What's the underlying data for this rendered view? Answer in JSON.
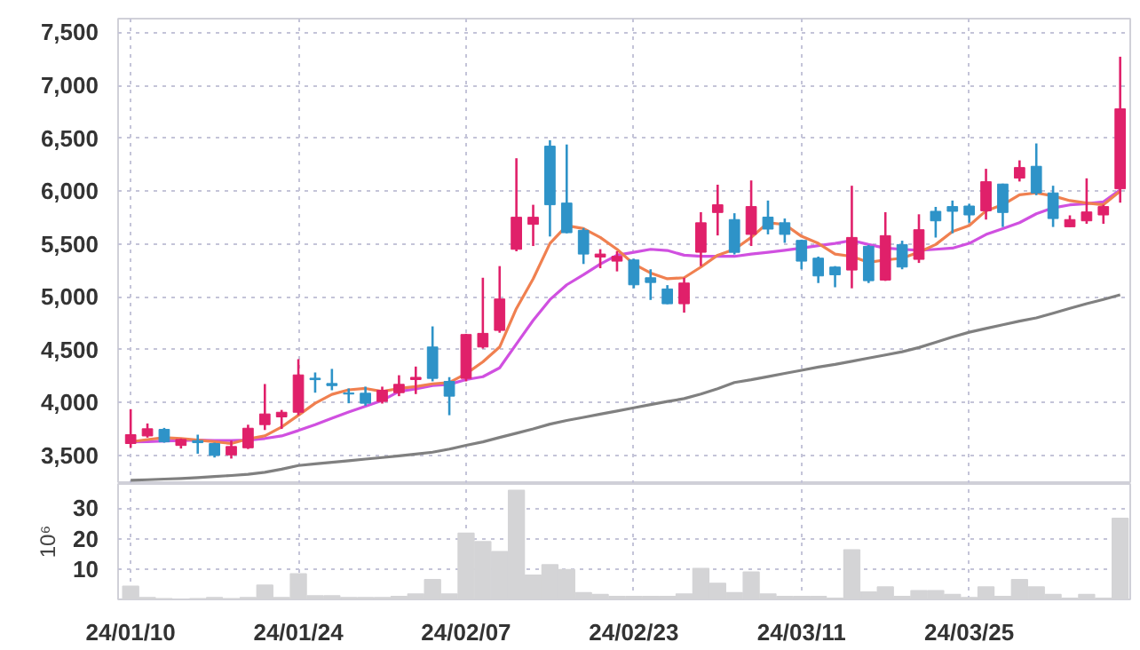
{
  "chart_data": [
    {
      "type": "candlestick",
      "ohlc": [
        [
          3612,
          3937,
          3572,
          3696
        ],
        [
          3684,
          3802,
          3668,
          3752
        ],
        [
          3746,
          3760,
          3620,
          3628
        ],
        [
          3594,
          3660,
          3565,
          3651
        ],
        [
          3640,
          3696,
          3516,
          3620
        ],
        [
          3612,
          3620,
          3480,
          3500
        ],
        [
          3505,
          3640,
          3470,
          3584
        ],
        [
          3572,
          3790,
          3560,
          3757
        ],
        [
          3791,
          4175,
          3740,
          3892
        ],
        [
          3864,
          3930,
          3750,
          3908
        ],
        [
          3908,
          4410,
          3880,
          4261
        ],
        [
          4230,
          4284,
          4093,
          4216
        ],
        [
          4180,
          4318,
          4116,
          4160
        ],
        [
          4090,
          4133,
          3993,
          4080
        ],
        [
          4088,
          4150,
          3970,
          3993
        ],
        [
          4010,
          4150,
          3990,
          4116
        ],
        [
          4093,
          4258,
          4060,
          4172
        ],
        [
          4217,
          4340,
          4080,
          4238
        ],
        [
          4525,
          4720,
          4200,
          4228
        ],
        [
          4200,
          4240,
          3880,
          4060
        ],
        [
          4228,
          4650,
          4200,
          4643
        ],
        [
          4525,
          5180,
          4510,
          4654
        ],
        [
          4682,
          5290,
          4660,
          4979
        ],
        [
          5449,
          6310,
          5430,
          5752
        ],
        [
          5685,
          5870,
          5480,
          5752
        ],
        [
          6424,
          6480,
          5570,
          5870
        ],
        [
          5886,
          6440,
          5600,
          5606
        ],
        [
          5628,
          5650,
          5310,
          5404
        ],
        [
          5376,
          5450,
          5270,
          5404
        ],
        [
          5337,
          5430,
          5240,
          5382
        ],
        [
          5348,
          5360,
          5080,
          5113
        ],
        [
          5180,
          5260,
          4970,
          5135
        ],
        [
          5074,
          5110,
          4930,
          4934
        ],
        [
          4934,
          5180,
          4850,
          5130
        ],
        [
          5421,
          5800,
          5290,
          5700
        ],
        [
          5797,
          6060,
          5580,
          5870
        ],
        [
          5730,
          5790,
          5400,
          5420
        ],
        [
          5590,
          6100,
          5480,
          5853
        ],
        [
          5753,
          5910,
          5590,
          5640
        ],
        [
          5700,
          5740,
          5510,
          5590
        ],
        [
          5533,
          5540,
          5260,
          5337
        ],
        [
          5365,
          5380,
          5130,
          5197
        ],
        [
          5281,
          5290,
          5090,
          5208
        ],
        [
          5253,
          6050,
          5080,
          5561
        ],
        [
          5477,
          5490,
          5130,
          5152
        ],
        [
          5158,
          5800,
          5150,
          5578
        ],
        [
          5494,
          5530,
          5260,
          5281
        ],
        [
          5354,
          5780,
          5320,
          5634
        ],
        [
          5808,
          5850,
          5560,
          5718
        ],
        [
          5853,
          5910,
          5600,
          5808
        ],
        [
          5858,
          5880,
          5700,
          5774
        ],
        [
          5813,
          6210,
          5730,
          6088
        ],
        [
          6066,
          6070,
          5660,
          5797
        ],
        [
          6122,
          6290,
          6090,
          6222
        ],
        [
          6234,
          6450,
          5960,
          5982
        ],
        [
          5982,
          6050,
          5660,
          5740
        ],
        [
          5662,
          5770,
          5660,
          5730
        ],
        [
          5718,
          6120,
          5690,
          5802
        ],
        [
          5774,
          5870,
          5690,
          5853
        ],
        [
          6021,
          7270,
          5890,
          6777
        ]
      ],
      "colors": [
        "#e0206a",
        "#e0206a",
        "#2e93c8",
        "#e0206a",
        "#2e93c8",
        "#2e93c8",
        "#e0206a",
        "#e0206a",
        "#e0206a",
        "#e0206a",
        "#e0206a",
        "#2e93c8",
        "#2e93c8",
        "#2e93c8",
        "#2e93c8",
        "#e0206a",
        "#e0206a",
        "#e0206a",
        "#2e93c8",
        "#2e93c8",
        "#e0206a",
        "#e0206a",
        "#e0206a",
        "#e0206a",
        "#e0206a",
        "#2e93c8",
        "#2e93c8",
        "#2e93c8",
        "#e0206a",
        "#e0206a",
        "#2e93c8",
        "#2e93c8",
        "#2e93c8",
        "#e0206a",
        "#e0206a",
        "#e0206a",
        "#2e93c8",
        "#e0206a",
        "#2e93c8",
        "#2e93c8",
        "#2e93c8",
        "#2e93c8",
        "#2e93c8",
        "#e0206a",
        "#2e93c8",
        "#e0206a",
        "#2e93c8",
        "#e0206a",
        "#2e93c8",
        "#2e93c8",
        "#2e93c8",
        "#e0206a",
        "#2e93c8",
        "#e0206a",
        "#2e93c8",
        "#2e93c8",
        "#e0206a",
        "#e0206a",
        "#e0206a",
        "#e0206a"
      ],
      "series": [
        {
          "type": "line",
          "color": "#808080",
          "values": [
            3264,
            3270,
            3276,
            3282,
            3290,
            3300,
            3310,
            3322,
            3340,
            3370,
            3404,
            3420,
            3435,
            3450,
            3465,
            3480,
            3495,
            3512,
            3530,
            3560,
            3595,
            3628,
            3670,
            3710,
            3750,
            3796,
            3830,
            3860,
            3890,
            3920,
            3950,
            3980,
            4010,
            4037,
            4080,
            4130,
            4189,
            4215,
            4245,
            4275,
            4305,
            4335,
            4360,
            4390,
            4420,
            4450,
            4480,
            4520,
            4570,
            4620,
            4665,
            4700,
            4735,
            4770,
            4800,
            4845,
            4890,
            4935,
            4975,
            5018
          ]
        },
        {
          "type": "line",
          "color": "#d050e0",
          "values": [
            3628,
            3630,
            3635,
            3640,
            3645,
            3640,
            3640,
            3645,
            3660,
            3684,
            3735,
            3790,
            3852,
            3910,
            3964,
            4020,
            4104,
            4130,
            4160,
            4172,
            4217,
            4244,
            4328,
            4553,
            4777,
            4973,
            5113,
            5208,
            5309,
            5393,
            5421,
            5449,
            5438,
            5393,
            5382,
            5382,
            5382,
            5404,
            5421,
            5440,
            5460,
            5483,
            5505,
            5533,
            5494,
            5460,
            5449,
            5440,
            5449,
            5460,
            5505,
            5589,
            5645,
            5701,
            5785,
            5841,
            5869,
            5880,
            5897,
            6010
          ]
        },
        {
          "type": "line",
          "color": "#f08050",
          "values": [
            3628,
            3650,
            3667,
            3660,
            3645,
            3630,
            3612,
            3656,
            3684,
            3768,
            3880,
            3993,
            4077,
            4120,
            4133,
            4104,
            4133,
            4150,
            4177,
            4189,
            4272,
            4385,
            4525,
            4889,
            5170,
            5505,
            5673,
            5645,
            5561,
            5449,
            5309,
            5225,
            5170,
            5180,
            5281,
            5393,
            5449,
            5561,
            5700,
            5684,
            5572,
            5505,
            5404,
            5382,
            5326,
            5348,
            5365,
            5421,
            5494,
            5617,
            5673,
            5813,
            5870,
            5965,
            5982,
            5954,
            5909,
            5886,
            5870,
            5998
          ]
        }
      ],
      "ylim": [
        3230,
        7630
      ],
      "yticks": [
        {
          "value": 3500,
          "label": "3,500"
        },
        {
          "value": 4000,
          "label": "4,000"
        },
        {
          "value": 4500,
          "label": "4,500"
        },
        {
          "value": 5000,
          "label": "5,000"
        },
        {
          "value": 5500,
          "label": "5,500"
        },
        {
          "value": 6000,
          "label": "6,000"
        },
        {
          "value": 6500,
          "label": "6,500"
        },
        {
          "value": 7000,
          "label": "7,000"
        },
        {
          "value": 7500,
          "label": "7,500"
        }
      ],
      "grid": true,
      "tick_labels": "y"
    },
    {
      "type": "bar",
      "categories": [
        "24/01/10",
        null,
        null,
        null,
        null,
        null,
        null,
        null,
        null,
        null,
        "24/01/24",
        null,
        null,
        null,
        null,
        null,
        null,
        null,
        null,
        null,
        "24/02/07",
        null,
        null,
        null,
        null,
        null,
        null,
        null,
        null,
        null,
        "24/02/23",
        null,
        null,
        null,
        null,
        null,
        null,
        null,
        null,
        null,
        "24/03/11",
        null,
        null,
        null,
        null,
        null,
        null,
        null,
        null,
        null,
        "24/03/25",
        null,
        null,
        null,
        null,
        null,
        null,
        null,
        null,
        null
      ],
      "values": [
        4.3,
        0.6,
        0.2,
        0,
        0.2,
        0.6,
        0.2,
        0.6,
        4.7,
        0.6,
        8.4,
        1.2,
        1.2,
        0.6,
        0.6,
        0.6,
        1,
        1.8,
        6.5,
        1.8,
        21.8,
        19,
        15.7,
        35.9,
        8,
        11.4,
        9.8,
        2.2,
        1.6,
        1,
        1,
        1,
        1,
        1.8,
        10.2,
        5.3,
        2.2,
        9,
        1.8,
        1,
        1,
        1,
        0.4,
        16.3,
        2.4,
        4.1,
        1,
        2.9,
        2.9,
        1.6,
        0.6,
        4.1,
        1,
        6.5,
        4.1,
        1.6,
        0.4,
        1.6,
        0.4,
        26.7
      ],
      "color": "#d4d4d6",
      "ylabel": "10⁶",
      "ylim": [
        0,
        38
      ],
      "yticks": [
        10,
        20,
        30
      ],
      "grid": true
    }
  ]
}
